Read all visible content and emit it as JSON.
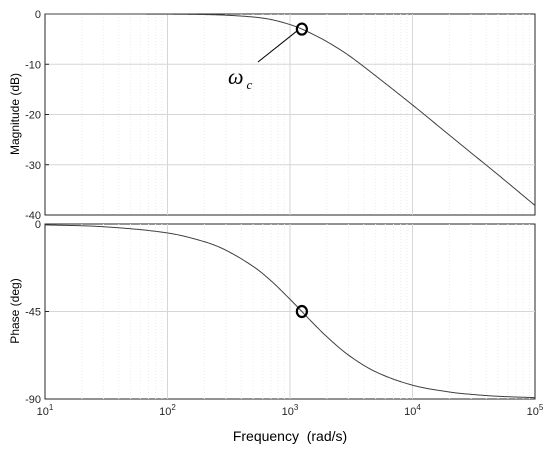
{
  "chart_data": [
    {
      "type": "line",
      "panel": "magnitude",
      "ylabel": "Magnitude (dB)",
      "xscale": "log",
      "xlim": [
        10,
        100000
      ],
      "ylim": [
        -40,
        0
      ],
      "yticks": [
        "0",
        "-10",
        "-20",
        "-30",
        "-40"
      ],
      "grid": true,
      "cutoff_frequency": 1250,
      "x": [
        10,
        30,
        100,
        200,
        300,
        500,
        700,
        1000,
        1250,
        1500,
        2000,
        3000,
        5000,
        10000,
        20000,
        30000,
        50000,
        100000
      ],
      "y": [
        0.0,
        0.0,
        -0.03,
        -0.11,
        -0.24,
        -0.6,
        -1.1,
        -2.1,
        -3.0,
        -3.9,
        -5.5,
        -8.2,
        -12.3,
        -18.1,
        -24.1,
        -27.6,
        -32.0,
        -38.1
      ],
      "annotation": {
        "symbol": "ω",
        "subscript": "c",
        "x": 1250,
        "y": -3.0
      }
    },
    {
      "type": "line",
      "panel": "phase",
      "ylabel": "Phase (deg)",
      "xlabel": "Frequency  (rad/s)",
      "xscale": "log",
      "xlim": [
        10,
        100000
      ],
      "ylim": [
        -90,
        0
      ],
      "yticks": [
        "0",
        "-45",
        "-90"
      ],
      "xticks": [
        {
          "base": "10",
          "exp": "1"
        },
        {
          "base": "10",
          "exp": "2"
        },
        {
          "base": "10",
          "exp": "3"
        },
        {
          "base": "10",
          "exp": "4"
        },
        {
          "base": "10",
          "exp": "5"
        }
      ],
      "grid": true,
      "x": [
        10,
        30,
        100,
        200,
        300,
        500,
        700,
        1000,
        1250,
        1500,
        2000,
        3000,
        5000,
        10000,
        20000,
        30000,
        50000,
        100000
      ],
      "y": [
        -0.46,
        -1.4,
        -4.6,
        -9.1,
        -13.5,
        -21.8,
        -29.2,
        -38.7,
        -45.0,
        -50.2,
        -58.0,
        -67.4,
        -76.0,
        -82.9,
        -86.4,
        -87.6,
        -88.6,
        -89.3
      ],
      "marker": {
        "x": 1250,
        "y": -45
      }
    }
  ]
}
